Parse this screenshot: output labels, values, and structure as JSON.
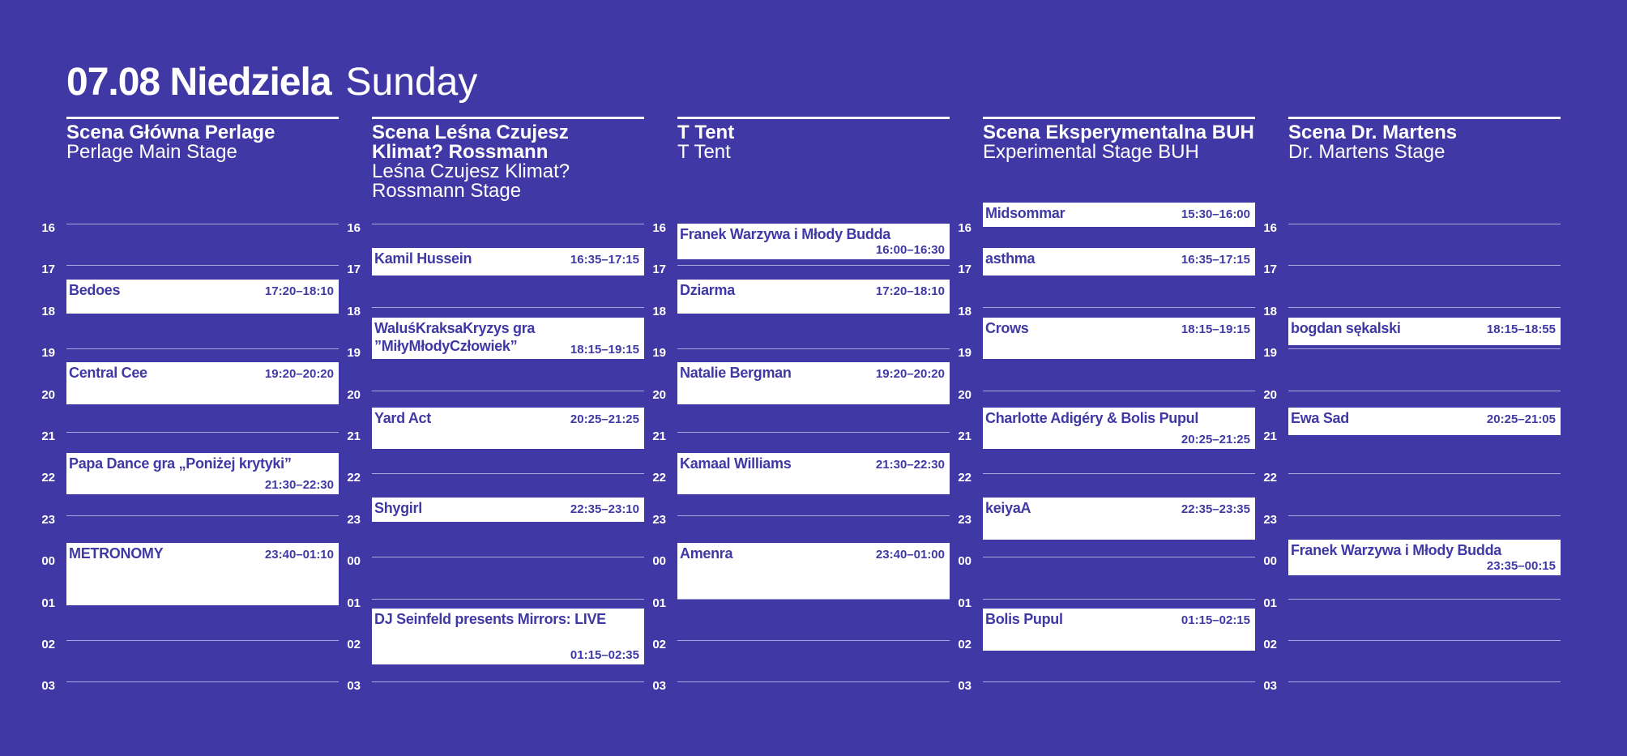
{
  "header": {
    "date_pl": "07.08 Niedziela",
    "day_en": "Sunday"
  },
  "colors": {
    "background": "#4039a5",
    "block": "#ffffff",
    "text_on_block": "#4039a5",
    "grid_line": "#aaa6dc"
  },
  "hours": [
    "16",
    "17",
    "18",
    "19",
    "20",
    "21",
    "22",
    "23",
    "00",
    "01",
    "02",
    "03"
  ],
  "stages": [
    {
      "name_pl": "Scena Główna Perlage",
      "name_en": "Perlage Main Stage",
      "events": [
        {
          "name": "Bedoes",
          "time": "17:20–18:10"
        },
        {
          "name": "Central Cee",
          "time": "19:20–20:20"
        },
        {
          "name": "Papa Dance gra „Poniżej krytyki”",
          "time": "21:30–22:30"
        },
        {
          "name": "METRONOMY",
          "time": "23:40–01:10"
        }
      ]
    },
    {
      "name_pl": "Scena Leśna Czujesz Klimat? Rossmann",
      "name_en": "Leśna Czujesz Klimat? Rossmann Stage",
      "events": [
        {
          "name": "Kamil Hussein",
          "time": "16:35–17:15"
        },
        {
          "name": "WaluśKraksaKryzys gra ”MiłyMłodyCzłowiek”",
          "time": "18:15–19:15"
        },
        {
          "name": "Yard Act",
          "time": "20:25–21:25"
        },
        {
          "name": "Shygirl",
          "time": "22:35–23:10"
        },
        {
          "name": "DJ Seinfeld presents Mirrors: LIVE",
          "time": "01:15–02:35"
        }
      ]
    },
    {
      "name_pl": "T Tent",
      "name_en": "T Tent",
      "events": [
        {
          "name": "Franek Warzywa i Młody Budda",
          "time": "16:00–16:30"
        },
        {
          "name": "Dziarma",
          "time": "17:20–18:10"
        },
        {
          "name": "Natalie Bergman",
          "time": "19:20–20:20"
        },
        {
          "name": "Kamaal Williams",
          "time": "21:30–22:30"
        },
        {
          "name": "Amenra",
          "time": "23:40–01:00"
        }
      ]
    },
    {
      "name_pl": "Scena Eksperymentalna BUH",
      "name_en": "Experimental Stage BUH",
      "events": [
        {
          "name": "Midsommar",
          "time": "15:30–16:00"
        },
        {
          "name": "asthma",
          "time": "16:35–17:15"
        },
        {
          "name": "Crows",
          "time": "18:15–19:15"
        },
        {
          "name": "Charlotte Adigéry & Bolis Pupul",
          "time": "20:25–21:25"
        },
        {
          "name": "keiyaA",
          "time": "22:35–23:35"
        },
        {
          "name": "Bolis Pupul",
          "time": "01:15–02:15"
        }
      ]
    },
    {
      "name_pl": "Scena Dr. Martens",
      "name_en": "Dr. Martens Stage",
      "events": [
        {
          "name": "bogdan sękalski",
          "time": "18:15–18:55"
        },
        {
          "name": "Ewa Sad",
          "time": "20:25–21:05"
        },
        {
          "name": "Franek Warzywa i Młody Budda",
          "time": "23:35–00:15"
        }
      ]
    }
  ]
}
